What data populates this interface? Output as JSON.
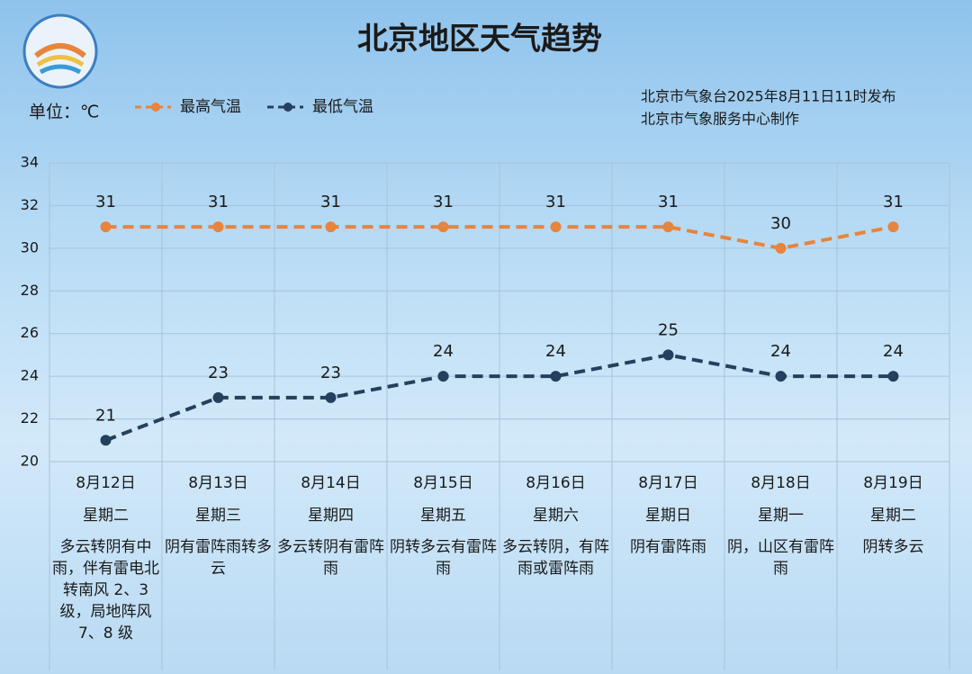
{
  "chart_data": {
    "type": "line",
    "title": "北京地区天气趋势",
    "unit_label": "单位：℃",
    "notes": [
      "北京市气象台2025年8月11日11时发布",
      "北京市气象服务中心制作"
    ],
    "categories": [
      "8月12日",
      "8月13日",
      "8月14日",
      "8月15日",
      "8月16日",
      "8月17日",
      "8月18日",
      "8月19日"
    ],
    "weekdays": [
      "星期二",
      "星期三",
      "星期四",
      "星期五",
      "星期六",
      "星期日",
      "星期一",
      "星期二"
    ],
    "weather": [
      "多云转阴有中雨，伴有雷电北转南风 2、3 级，局地阵风 7、8 级",
      "阴有雷阵雨转多云",
      "多云转阴有雷阵雨",
      "阴转多云有雷阵雨",
      "多云转阴，有阵雨或雷阵雨",
      "阴有雷阵雨",
      "阴，山区有雷阵雨",
      "阴转多云"
    ],
    "series": [
      {
        "name": "最高气温",
        "color": "#e8843c",
        "values": [
          31,
          31,
          31,
          31,
          31,
          31,
          30,
          31
        ]
      },
      {
        "name": "最低气温",
        "color": "#24405e",
        "values": [
          21,
          23,
          23,
          24,
          24,
          25,
          24,
          24
        ]
      }
    ],
    "line_style": "dashed",
    "ylim": [
      20,
      34
    ],
    "yticks": [
      20,
      22,
      24,
      26,
      28,
      30,
      32,
      34
    ],
    "grid": true
  }
}
